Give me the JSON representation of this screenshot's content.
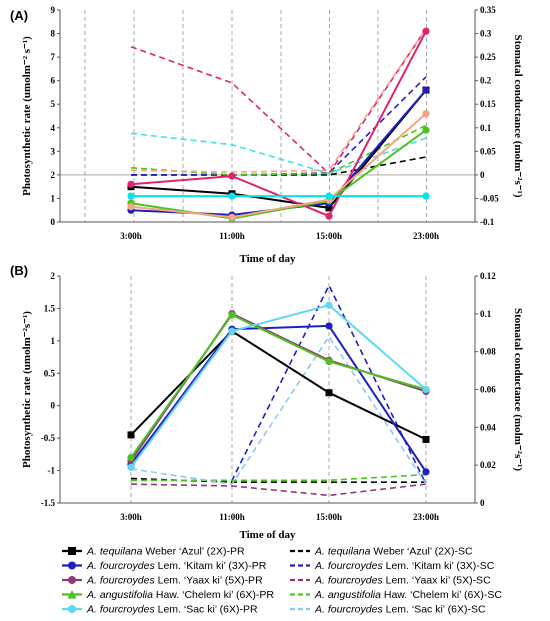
{
  "chart_data": [
    {
      "type": "line",
      "panel_label": "(A)",
      "xlabel": "Time of day",
      "ylabel_left": "Photosynthetic rate (umolm⁻² s⁻¹)",
      "ylabel_right": "Stomatal conductance (molm⁻²s⁻¹)",
      "categories": [
        "3:00h",
        "11:00h",
        "15:00h",
        "23:00h"
      ],
      "ylim_left": [
        0,
        9
      ],
      "yticks_left": [
        "0",
        "1",
        "2",
        "3",
        "4",
        "5",
        "6",
        "7",
        "8",
        "9"
      ],
      "ylim_right": [
        -0.1,
        0.35
      ],
      "yticks_right": [
        "-0.1",
        "-0.05",
        "0",
        "0.05",
        "0.1",
        "0.15",
        "0.2",
        "0.25",
        "0.3",
        "0.35"
      ],
      "series": [
        {
          "axis": "left",
          "color": "#000000",
          "dash": false,
          "values": [
            1.5,
            1.2,
            0.6,
            5.6
          ]
        },
        {
          "axis": "left",
          "color": "#1f1fbf",
          "dash": false,
          "values": [
            0.5,
            0.3,
            0.8,
            5.6
          ]
        },
        {
          "axis": "left",
          "color": "#e0226e",
          "dash": false,
          "values": [
            1.6,
            1.95,
            0.25,
            8.1
          ]
        },
        {
          "axis": "left",
          "color": "#4cc21f",
          "dash": false,
          "values": [
            0.8,
            0.15,
            0.9,
            3.9
          ]
        },
        {
          "axis": "left",
          "color": "#f4a582",
          "dash": false,
          "values": [
            0.65,
            0.2,
            0.95,
            4.6
          ]
        },
        {
          "axis": "left",
          "color": "#00e5ee",
          "dash": false,
          "values": [
            1.1,
            1.1,
            1.1,
            1.1
          ]
        },
        {
          "axis": "right",
          "color": "#000000",
          "dash": true,
          "values": [
            0.0,
            0.0,
            0.0,
            0.038
          ]
        },
        {
          "axis": "right",
          "color": "#1f1fbf",
          "dash": true,
          "values": [
            0.0,
            0.0,
            0.004,
            0.208
          ]
        },
        {
          "axis": "right",
          "color": "#e0226e",
          "dash": true,
          "values": [
            0.272,
            0.195,
            0.003,
            0.31
          ]
        },
        {
          "axis": "right",
          "color": "#4cc21f",
          "dash": true,
          "values": [
            0.015,
            0.0,
            0.003,
            0.105
          ]
        },
        {
          "axis": "right",
          "color": "#f4a582",
          "dash": true,
          "values": [
            0.01,
            0.006,
            0.01,
            0.31
          ]
        },
        {
          "axis": "right",
          "color": "#40e0ee",
          "dash": true,
          "values": [
            0.088,
            0.064,
            0.003,
            0.078
          ]
        }
      ]
    },
    {
      "type": "line",
      "panel_label": "(B)",
      "xlabel": "Time of day",
      "ylabel_left": "Photosynthetic rate (umolm⁻²s⁻¹)",
      "ylabel_right": "Stomatal conductance (molm⁻²s⁻¹)",
      "categories": [
        "3:00h",
        "11:00h",
        "15:00h",
        "23:00h"
      ],
      "ylim_left": [
        -1.5,
        2
      ],
      "yticks_left": [
        "-1.5",
        "-1",
        "-0.5",
        "0",
        "0.5",
        "1",
        "1.5",
        "2"
      ],
      "ylim_right": [
        0,
        0.12
      ],
      "yticks_right": [
        "0",
        "0.02",
        "0.04",
        "0.06",
        "0.08",
        "0.1",
        "0.12"
      ],
      "series": [
        {
          "axis": "left",
          "color": "#000000",
          "dash": false,
          "values": [
            -0.45,
            1.15,
            0.2,
            -0.52
          ]
        },
        {
          "axis": "left",
          "color": "#1f1fbf",
          "dash": false,
          "values": [
            -0.9,
            1.18,
            1.23,
            -1.02
          ]
        },
        {
          "axis": "left",
          "color": "#8e3a7a",
          "dash": false,
          "values": [
            -0.85,
            1.42,
            0.7,
            0.22
          ]
        },
        {
          "axis": "left",
          "color": "#4cc21f",
          "dash": false,
          "values": [
            -0.8,
            1.4,
            0.68,
            0.25
          ]
        },
        {
          "axis": "left",
          "color": "#5fd7f0",
          "dash": false,
          "values": [
            -0.95,
            1.15,
            1.55,
            0.25
          ]
        },
        {
          "axis": "right",
          "color": "#000000",
          "dash": true,
          "values": [
            0.013,
            0.011,
            0.011,
            0.011
          ]
        },
        {
          "axis": "right",
          "color": "#1f1fbf",
          "dash": true,
          "values": [
            0.012,
            0.012,
            0.115,
            0.01
          ]
        },
        {
          "axis": "right",
          "color": "#8e3a7a",
          "dash": true,
          "values": [
            0.01,
            0.009,
            0.004,
            0.01
          ]
        },
        {
          "axis": "right",
          "color": "#4cc21f",
          "dash": true,
          "values": [
            0.012,
            0.012,
            0.012,
            0.015
          ]
        },
        {
          "axis": "right",
          "color": "#8cc8f0",
          "dash": true,
          "values": [
            0.018,
            0.01,
            0.088,
            0.01
          ]
        }
      ]
    }
  ],
  "legend": [
    {
      "italic": "A. tequilana",
      "rest": " Weber ‘Azul’ (2X)-PR",
      "color": "#000000",
      "dash": false,
      "marker": "square"
    },
    {
      "italic": "A. tequilana",
      "rest": " Weber ‘Azul’ (2X)-SC",
      "color": "#000000",
      "dash": true,
      "marker": "none"
    },
    {
      "italic": "A. fourcroydes",
      "rest": " Lem. ‘Kitam ki’ (3X)-PR",
      "color": "#1f1fbf",
      "dash": false,
      "marker": "circle"
    },
    {
      "italic": "A. fourcroydes",
      "rest": " Lem. ‘Kitam ki’ (3X)-SC",
      "color": "#1f1fbf",
      "dash": true,
      "marker": "none"
    },
    {
      "italic": "A. fourcroydes",
      "rest": " Lem. ‘Yaax ki’ (5X)-PR",
      "color": "#8e3a7a",
      "dash": false,
      "marker": "circle"
    },
    {
      "italic": "A. fourcroydes",
      "rest": " Lem. ‘Yaax ki’ (5X)-SC",
      "color": "#8e3a7a",
      "dash": true,
      "marker": "none"
    },
    {
      "italic": "A. angustifolia",
      "rest": " Haw. ‘Chelem ki’ (6X)-PR",
      "color": "#4cc21f",
      "dash": false,
      "marker": "triangle"
    },
    {
      "italic": "A. angustifolia",
      "rest": " Haw. ‘Chelem ki’ (6X)-SC",
      "color": "#4cc21f",
      "dash": true,
      "marker": "none"
    },
    {
      "italic": "A. fourcroydes",
      "rest": " Lem. ‘Sac ki’ (6X)-PR",
      "color": "#5fd7f0",
      "dash": false,
      "marker": "circle"
    },
    {
      "italic": "A. fourcroydes",
      "rest": " Lem. ‘Sac ki’ (6X)-SC",
      "color": "#8cc8f0",
      "dash": true,
      "marker": "none"
    }
  ]
}
